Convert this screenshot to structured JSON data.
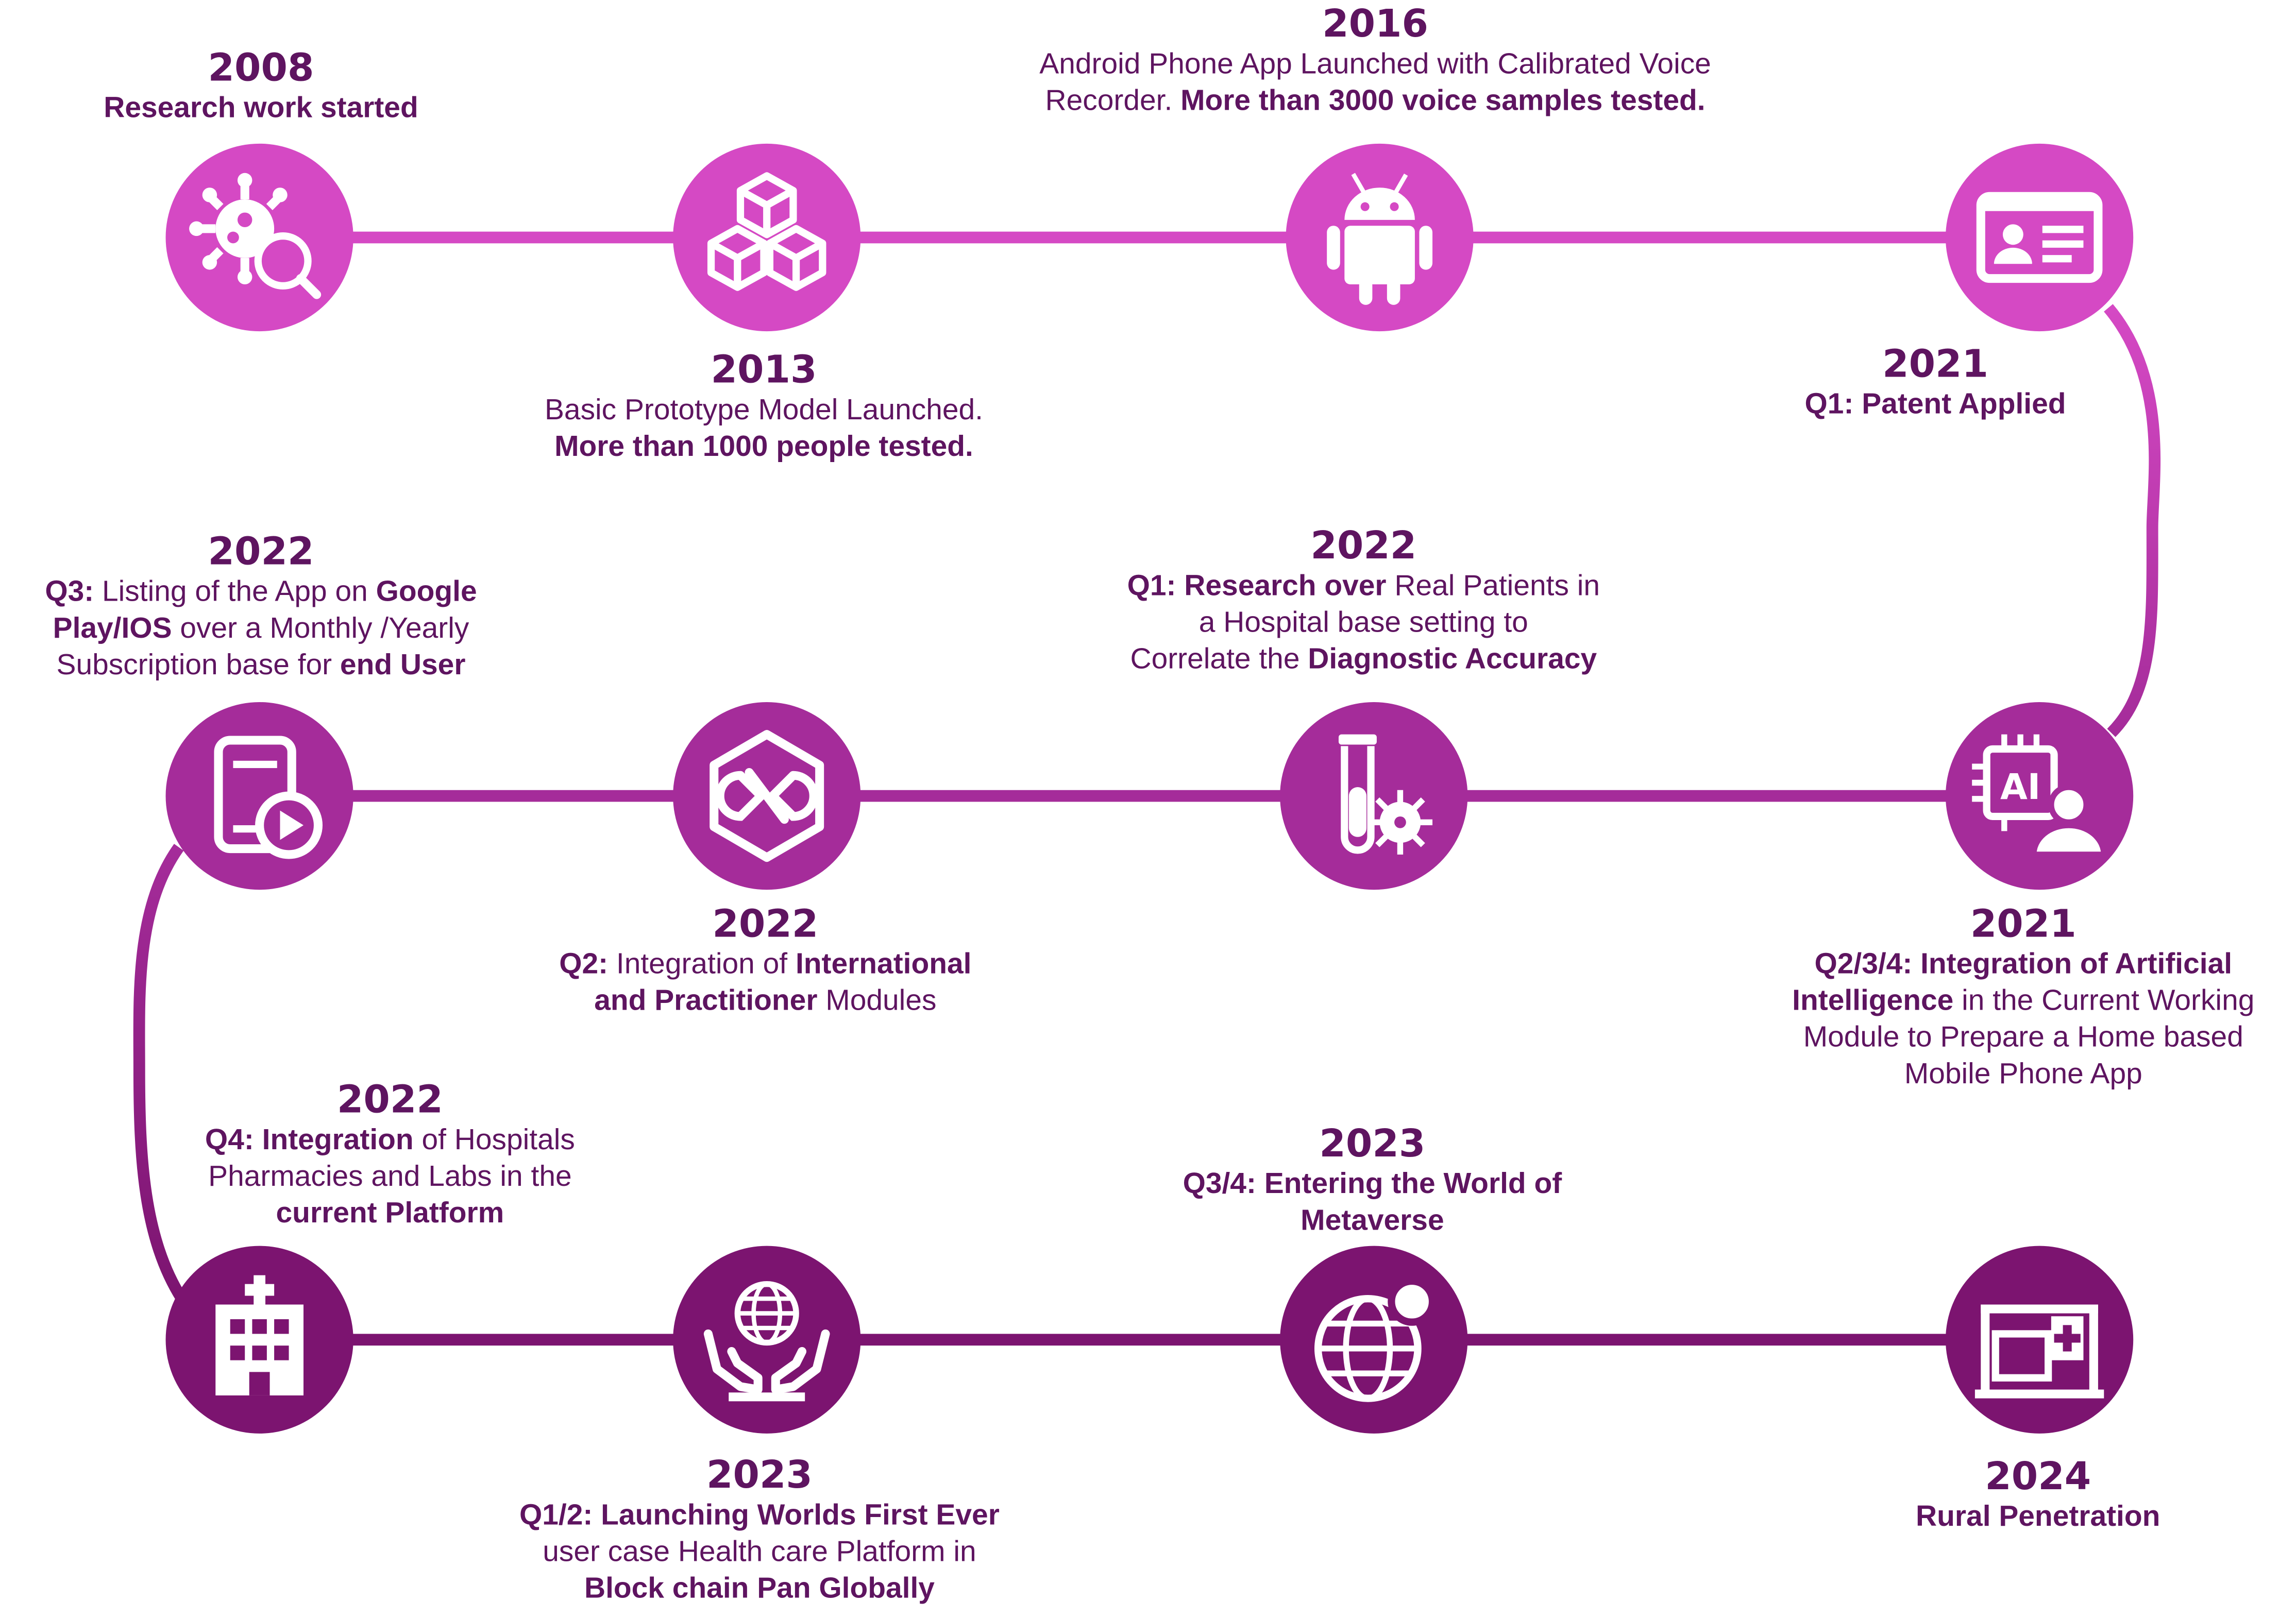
{
  "colors": {
    "row1": "#d549c4",
    "row2": "#a52c9a",
    "row3": "#7c1470",
    "text": "#5e1460"
  },
  "milestones": [
    {
      "id": "m2008",
      "year": "2008",
      "icon": "virus-search-icon",
      "parts": [
        {
          "text": "Research work started",
          "bold": true
        }
      ]
    },
    {
      "id": "m2013",
      "year": "2013",
      "icon": "blocks-icon",
      "parts": [
        {
          "text": "Basic Prototype Model Launched.",
          "bold": false
        },
        {
          "text": "\n",
          "bold": false
        },
        {
          "text": "More than 1000 people tested.",
          "bold": true
        }
      ]
    },
    {
      "id": "m2016",
      "year": "2016",
      "icon": "android-icon",
      "parts": [
        {
          "text": "Android Phone App Launched with Calibrated Voice",
          "bold": false
        },
        {
          "text": "\n",
          "bold": false
        },
        {
          "text": "Recorder. ",
          "bold": false
        },
        {
          "text": "More than 3000 voice samples tested.",
          "bold": true
        }
      ]
    },
    {
      "id": "m2021a",
      "year": "2021",
      "icon": "id-card-icon",
      "parts": [
        {
          "text": "Q1: Patent Applied",
          "bold": true
        }
      ]
    },
    {
      "id": "m2021b",
      "year": "2021",
      "icon": "ai-chip-person-icon",
      "parts": [
        {
          "text": "Q2/3/4: Integration of Artificial",
          "bold": true
        },
        {
          "text": "\n",
          "bold": false
        },
        {
          "text": "Intelligence",
          "bold": true
        },
        {
          "text": " in the Current Working",
          "bold": false
        },
        {
          "text": "\n",
          "bold": false
        },
        {
          "text": "Module to Prepare a Home based",
          "bold": false
        },
        {
          "text": "\n",
          "bold": false
        },
        {
          "text": "Mobile Phone App",
          "bold": false
        }
      ]
    },
    {
      "id": "m2022q1",
      "year": "2022",
      "icon": "test-tube-virus-icon",
      "parts": [
        {
          "text": "Q1: Research over",
          "bold": true
        },
        {
          "text": " Real Patients in",
          "bold": false
        },
        {
          "text": "\n",
          "bold": false
        },
        {
          "text": "a Hospital base setting  to",
          "bold": false
        },
        {
          "text": "\n",
          "bold": false
        },
        {
          "text": "Correlate the ",
          "bold": false
        },
        {
          "text": "Diagnostic Accuracy",
          "bold": true
        }
      ]
    },
    {
      "id": "m2022q2",
      "year": "2022",
      "icon": "integration-hexagon-icon",
      "parts": [
        {
          "text": "Q2:",
          "bold": true
        },
        {
          "text": " Integration of ",
          "bold": false
        },
        {
          "text": "International",
          "bold": true
        },
        {
          "text": "\n",
          "bold": false
        },
        {
          "text": "and Practitioner",
          "bold": true
        },
        {
          "text": " Modules",
          "bold": false
        }
      ]
    },
    {
      "id": "m2022q3",
      "year": "2022",
      "icon": "tablet-play-icon",
      "parts": [
        {
          "text": "Q3:",
          "bold": true
        },
        {
          "text": " Listing of the App on ",
          "bold": false
        },
        {
          "text": "Google",
          "bold": true
        },
        {
          "text": "\n",
          "bold": false
        },
        {
          "text": "Play/IOS",
          "bold": true
        },
        {
          "text": " over a Monthly /Yearly",
          "bold": false
        },
        {
          "text": "\n",
          "bold": false
        },
        {
          "text": "Subscription base for ",
          "bold": false
        },
        {
          "text": "end User",
          "bold": true
        }
      ]
    },
    {
      "id": "m2022q4",
      "year": "2022",
      "icon": "hospital-icon",
      "parts": [
        {
          "text": "Q4: ",
          "bold": true
        },
        {
          "text": "Integration",
          "bold": true
        },
        {
          "text": " of Hospitals",
          "bold": false
        },
        {
          "text": "\n",
          "bold": false
        },
        {
          "text": "Pharmacies and Labs in the",
          "bold": false
        },
        {
          "text": "\n",
          "bold": false
        },
        {
          "text": "current Platform",
          "bold": true
        }
      ]
    },
    {
      "id": "m2023a",
      "year": "2023",
      "icon": "hands-globe-icon",
      "parts": [
        {
          "text": "Q1/2: Launching Worlds First Ever",
          "bold": true
        },
        {
          "text": "\n",
          "bold": false
        },
        {
          "text": "user case Health care Platform in",
          "bold": false
        },
        {
          "text": "\n",
          "bold": false
        },
        {
          "text": "Block chain Pan Globally",
          "bold": true
        }
      ]
    },
    {
      "id": "m2023b",
      "year": "2023",
      "icon": "globe-metaverse-icon",
      "parts": [
        {
          "text": "Q3/4: Entering the World of",
          "bold": true
        },
        {
          "text": "\n",
          "bold": false
        },
        {
          "text": "Metaverse",
          "bold": true
        }
      ]
    },
    {
      "id": "m2024",
      "year": "2024",
      "icon": "rural-clinic-icon",
      "parts": [
        {
          "text": "Rural Penetration",
          "bold": true
        }
      ]
    }
  ]
}
